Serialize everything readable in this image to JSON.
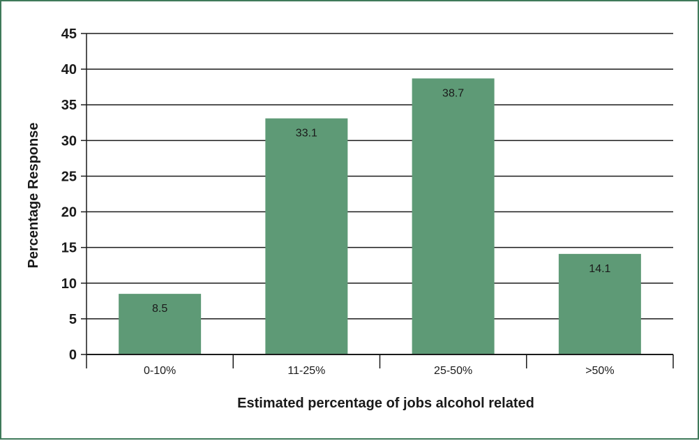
{
  "chart_data": {
    "type": "bar",
    "title": "",
    "xlabel": "Estimated percentage of jobs alcohol related",
    "ylabel": "Percentage Response",
    "categories": [
      "0-10%",
      "11-25%",
      "25-50%",
      ">50%"
    ],
    "values": [
      8.5,
      33.1,
      38.7,
      14.1
    ],
    "data_labels": [
      "8.5",
      "33.1",
      "38.7",
      "14.1"
    ],
    "ylim": [
      0,
      45
    ],
    "yticks": [
      "0",
      "5",
      "10",
      "15",
      "20",
      "25",
      "30",
      "35",
      "40",
      "45"
    ],
    "grid": true,
    "legend": "none",
    "colors": {
      "bar": "#5e9a76",
      "frame": "#3f7a5a",
      "grid": "#1a1a1a"
    }
  }
}
